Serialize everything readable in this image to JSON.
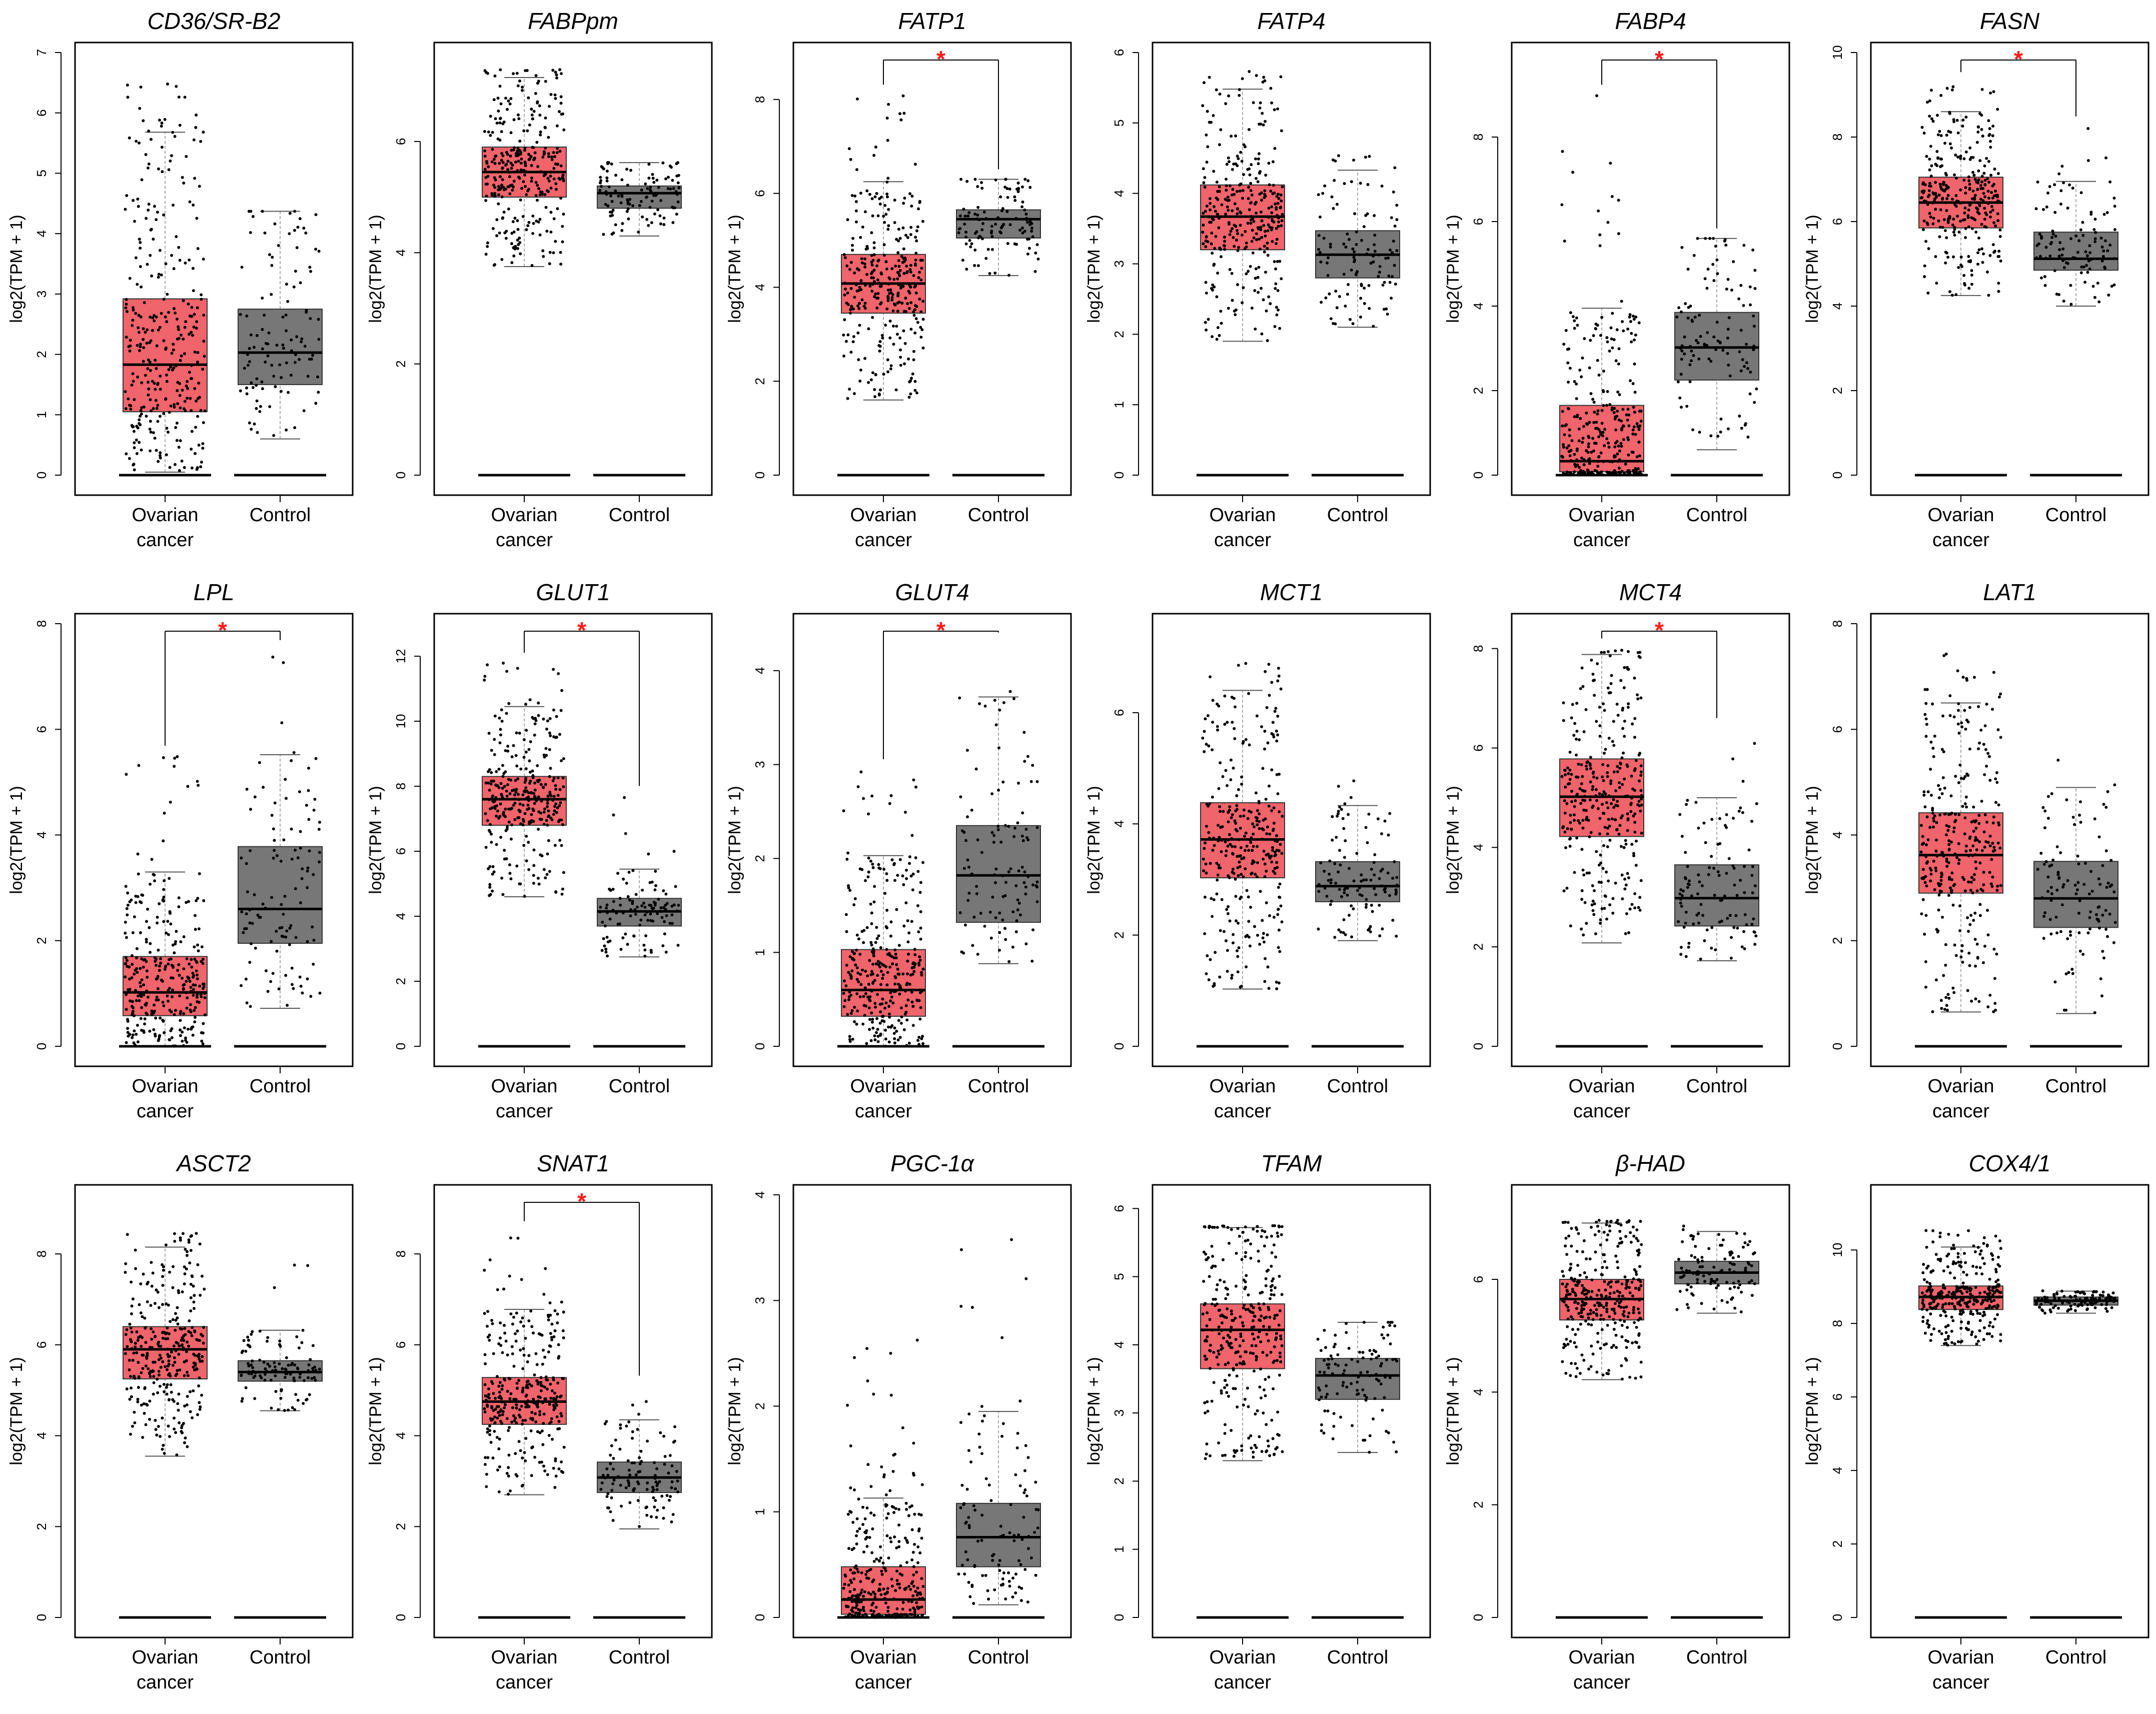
{
  "figure": {
    "colors": {
      "tumor": "#f0646b",
      "normal": "#777777",
      "star": "#ff1a1a",
      "whisker": "#aaaaaa",
      "dot": "#000000"
    }
  },
  "chart_data": [
    {
      "type": "box",
      "title": "CD36/SR-B2",
      "ylabel": "log2(TPM + 1)",
      "ylim": [
        0,
        7
      ],
      "yticks": [
        0,
        1,
        2,
        3,
        4,
        5,
        6,
        7
      ],
      "categories": [
        "Ovarian cancer",
        "Control"
      ],
      "significant": false,
      "boxes": [
        {
          "name": "Ovarian cancer",
          "q1": 1.05,
          "median": 1.83,
          "q3": 2.92,
          "whisker_low": 0.05,
          "whisker_high": 5.68,
          "max": 6.5
        },
        {
          "name": "Control",
          "q1": 1.5,
          "median": 2.03,
          "q3": 2.75,
          "whisker_low": 0.6,
          "whisker_high": 4.37,
          "max": 4.37
        }
      ]
    },
    {
      "type": "box",
      "title": "FABPpm",
      "ylabel": "log2(TPM + 1)",
      "ylim": [
        0,
        7.6
      ],
      "yticks": [
        0,
        2,
        4,
        6
      ],
      "categories": [
        "Ovarian cancer",
        "Control"
      ],
      "significant": false,
      "boxes": [
        {
          "name": "Ovarian cancer",
          "q1": 5.0,
          "median": 5.45,
          "q3": 5.9,
          "whisker_low": 3.75,
          "whisker_high": 7.15,
          "max": 7.3
        },
        {
          "name": "Control",
          "q1": 4.8,
          "median": 5.07,
          "q3": 5.2,
          "whisker_low": 4.3,
          "whisker_high": 5.62,
          "max": 5.62
        }
      ]
    },
    {
      "type": "box",
      "title": "FATP1",
      "ylabel": "log2(TPM + 1)",
      "ylim": [
        0,
        9
      ],
      "yticks": [
        0,
        2,
        4,
        6,
        8
      ],
      "categories": [
        "Ovarian cancer",
        "Control"
      ],
      "significant": true,
      "boxes": [
        {
          "name": "Ovarian cancer",
          "q1": 3.45,
          "median": 4.08,
          "q3": 4.7,
          "whisker_low": 1.6,
          "whisker_high": 6.25,
          "max": 8.1
        },
        {
          "name": "Control",
          "q1": 5.05,
          "median": 5.45,
          "q3": 5.65,
          "whisker_low": 4.25,
          "whisker_high": 6.3,
          "max": 6.3
        }
      ]
    },
    {
      "type": "box",
      "title": "FATP4",
      "ylabel": "log2(TPM + 1)",
      "ylim": [
        0,
        6
      ],
      "yticks": [
        0,
        1,
        2,
        3,
        4,
        5,
        6
      ],
      "categories": [
        "Ovarian cancer",
        "Control"
      ],
      "significant": false,
      "boxes": [
        {
          "name": "Ovarian cancer",
          "q1": 3.2,
          "median": 3.67,
          "q3": 4.12,
          "whisker_low": 1.9,
          "whisker_high": 5.48,
          "max": 5.75
        },
        {
          "name": "Control",
          "q1": 2.8,
          "median": 3.13,
          "q3": 3.47,
          "whisker_low": 2.1,
          "whisker_high": 4.33,
          "max": 4.65
        }
      ]
    },
    {
      "type": "box",
      "title": "FABP4",
      "ylabel": "log2(TPM + 1)",
      "ylim": [
        0,
        10
      ],
      "yticks": [
        0,
        2,
        4,
        6,
        8
      ],
      "categories": [
        "Ovarian cancer",
        "Control"
      ],
      "significant": true,
      "boxes": [
        {
          "name": "Ovarian cancer",
          "q1": 0.08,
          "median": 0.33,
          "q3": 1.65,
          "whisker_low": 0,
          "whisker_high": 3.95,
          "max": 9.0
        },
        {
          "name": "Control",
          "q1": 2.25,
          "median": 3.02,
          "q3": 3.85,
          "whisker_low": 0.6,
          "whisker_high": 5.6,
          "max": 5.6
        }
      ]
    },
    {
      "type": "box",
      "title": "FASN",
      "ylabel": "log2(TPM + 1)",
      "ylim": [
        0,
        10
      ],
      "yticks": [
        0,
        2,
        4,
        6,
        8,
        10
      ],
      "categories": [
        "Ovarian cancer",
        "Control"
      ],
      "significant": true,
      "boxes": [
        {
          "name": "Ovarian cancer",
          "q1": 5.85,
          "median": 6.45,
          "q3": 7.05,
          "whisker_low": 4.25,
          "whisker_high": 8.6,
          "max": 9.3
        },
        {
          "name": "Control",
          "q1": 4.85,
          "median": 5.12,
          "q3": 5.75,
          "whisker_low": 4.0,
          "whisker_high": 6.95,
          "max": 8.25
        }
      ]
    },
    {
      "type": "box",
      "title": "LPL",
      "ylabel": "log2(TPM + 1)",
      "ylim": [
        0,
        8
      ],
      "yticks": [
        0,
        2,
        4,
        6,
        8
      ],
      "categories": [
        "Ovarian cancer",
        "Control"
      ],
      "significant": true,
      "boxes": [
        {
          "name": "Ovarian cancer",
          "q1": 0.58,
          "median": 1.02,
          "q3": 1.7,
          "whisker_low": 0,
          "whisker_high": 3.3,
          "max": 5.5
        },
        {
          "name": "Control",
          "q1": 1.95,
          "median": 2.6,
          "q3": 3.78,
          "whisker_low": 0.72,
          "whisker_high": 5.52,
          "max": 7.5
        }
      ]
    },
    {
      "type": "box",
      "title": "GLUT1",
      "ylabel": "log2(TPM + 1)",
      "ylim": [
        0,
        13
      ],
      "yticks": [
        0,
        2,
        4,
        6,
        8,
        10,
        12
      ],
      "categories": [
        "Ovarian cancer",
        "Control"
      ],
      "significant": true,
      "boxes": [
        {
          "name": "Ovarian cancer",
          "q1": 6.8,
          "median": 7.6,
          "q3": 8.3,
          "whisker_low": 4.6,
          "whisker_high": 10.45,
          "max": 11.8
        },
        {
          "name": "Control",
          "q1": 3.7,
          "median": 4.15,
          "q3": 4.55,
          "whisker_low": 2.75,
          "whisker_high": 5.45,
          "max": 7.7
        }
      ]
    },
    {
      "type": "box",
      "title": "GLUT4",
      "ylabel": "log2(TPM + 1)",
      "ylim": [
        0,
        4.5
      ],
      "yticks": [
        0,
        1,
        2,
        3,
        4
      ],
      "categories": [
        "Ovarian cancer",
        "Control"
      ],
      "significant": true,
      "boxes": [
        {
          "name": "Ovarian cancer",
          "q1": 0.32,
          "median": 0.6,
          "q3": 1.03,
          "whisker_low": 0,
          "whisker_high": 2.03,
          "max": 2.95
        },
        {
          "name": "Control",
          "q1": 1.32,
          "median": 1.82,
          "q3": 2.35,
          "whisker_low": 0.88,
          "whisker_high": 3.72,
          "max": 4.3
        }
      ]
    },
    {
      "type": "box",
      "title": "MCT1",
      "ylabel": "log2(TPM + 1)",
      "ylim": [
        0,
        7.6
      ],
      "yticks": [
        0,
        2,
        4,
        6
      ],
      "categories": [
        "Ovarian cancer",
        "Control"
      ],
      "significant": false,
      "boxes": [
        {
          "name": "Ovarian cancer",
          "q1": 3.03,
          "median": 3.72,
          "q3": 4.38,
          "whisker_low": 1.03,
          "whisker_high": 6.4,
          "max": 7.0
        },
        {
          "name": "Control",
          "q1": 2.6,
          "median": 2.88,
          "q3": 3.32,
          "whisker_low": 1.9,
          "whisker_high": 4.33,
          "max": 4.8
        }
      ]
    },
    {
      "type": "box",
      "title": "MCT4",
      "ylabel": "log2(TPM + 1)",
      "ylim": [
        0,
        8.5
      ],
      "yticks": [
        0,
        2,
        4,
        6,
        8
      ],
      "categories": [
        "Ovarian cancer",
        "Control"
      ],
      "significant": true,
      "boxes": [
        {
          "name": "Ovarian cancer",
          "q1": 4.22,
          "median": 5.02,
          "q3": 5.78,
          "whisker_low": 2.08,
          "whisker_high": 7.88,
          "max": 8.0
        },
        {
          "name": "Control",
          "q1": 2.42,
          "median": 2.98,
          "q3": 3.65,
          "whisker_low": 1.72,
          "whisker_high": 5.0,
          "max": 6.4
        }
      ]
    },
    {
      "type": "box",
      "title": "LAT1",
      "ylabel": "log2(TPM + 1)",
      "ylim": [
        0,
        8
      ],
      "yticks": [
        0,
        2,
        4,
        6,
        8
      ],
      "categories": [
        "Ovarian cancer",
        "Control"
      ],
      "significant": false,
      "boxes": [
        {
          "name": "Ovarian cancer",
          "q1": 2.9,
          "median": 3.62,
          "q3": 4.42,
          "whisker_low": 0.65,
          "whisker_high": 6.5,
          "max": 7.45
        },
        {
          "name": "Control",
          "q1": 2.25,
          "median": 2.8,
          "q3": 3.5,
          "whisker_low": 0.62,
          "whisker_high": 4.9,
          "max": 6.05
        }
      ]
    },
    {
      "type": "box",
      "title": "ASCT2",
      "ylabel": "log2(TPM + 1)",
      "ylim": [
        0,
        9.3
      ],
      "yticks": [
        0,
        2,
        4,
        6,
        8
      ],
      "categories": [
        "Ovarian cancer",
        "Control"
      ],
      "significant": false,
      "boxes": [
        {
          "name": "Ovarian cancer",
          "q1": 5.25,
          "median": 5.9,
          "q3": 6.4,
          "whisker_low": 3.55,
          "whisker_high": 8.15,
          "max": 8.5
        },
        {
          "name": "Control",
          "q1": 5.2,
          "median": 5.4,
          "q3": 5.65,
          "whisker_low": 4.55,
          "whisker_high": 6.32,
          "max": 8.2
        }
      ]
    },
    {
      "type": "box",
      "title": "SNAT1",
      "ylabel": "log2(TPM + 1)",
      "ylim": [
        0,
        9.3
      ],
      "yticks": [
        0,
        2,
        4,
        6,
        8
      ],
      "categories": [
        "Ovarian cancer",
        "Control"
      ],
      "significant": true,
      "boxes": [
        {
          "name": "Ovarian cancer",
          "q1": 4.25,
          "median": 4.75,
          "q3": 5.28,
          "whisker_low": 2.7,
          "whisker_high": 6.78,
          "max": 8.5
        },
        {
          "name": "Control",
          "q1": 2.75,
          "median": 3.08,
          "q3": 3.42,
          "whisker_low": 1.95,
          "whisker_high": 4.35,
          "max": 5.1
        }
      ]
    },
    {
      "type": "box",
      "title": "PGC-1α",
      "ylabel": "log2(TPM + 1)",
      "ylim": [
        0,
        4
      ],
      "yticks": [
        0,
        1,
        2,
        3,
        4
      ],
      "categories": [
        "Ovarian cancer",
        "Control"
      ],
      "significant": false,
      "boxes": [
        {
          "name": "Ovarian cancer",
          "q1": 0.03,
          "median": 0.17,
          "q3": 0.48,
          "whisker_low": 0,
          "whisker_high": 1.13,
          "max": 2.65
        },
        {
          "name": "Control",
          "q1": 0.48,
          "median": 0.76,
          "q3": 1.08,
          "whisker_low": 0.12,
          "whisker_high": 1.95,
          "max": 3.67
        }
      ]
    },
    {
      "type": "box",
      "title": "TFAM",
      "ylabel": "log2(TPM + 1)",
      "ylim": [
        0,
        6.2
      ],
      "yticks": [
        0,
        1,
        2,
        3,
        4,
        5,
        6
      ],
      "categories": [
        "Ovarian cancer",
        "Control"
      ],
      "significant": false,
      "boxes": [
        {
          "name": "Ovarian cancer",
          "q1": 3.65,
          "median": 4.22,
          "q3": 4.6,
          "whisker_low": 2.3,
          "whisker_high": 5.72,
          "max": 5.75
        },
        {
          "name": "Control",
          "q1": 3.2,
          "median": 3.55,
          "q3": 3.8,
          "whisker_low": 2.42,
          "whisker_high": 4.33,
          "max": 4.33
        }
      ]
    },
    {
      "type": "box",
      "title": "β-HAD",
      "ylabel": "log2(TPM + 1)",
      "ylim": [
        0,
        7.5
      ],
      "yticks": [
        0,
        2,
        4,
        6
      ],
      "categories": [
        "Ovarian cancer",
        "Control"
      ],
      "significant": false,
      "boxes": [
        {
          "name": "Ovarian cancer",
          "q1": 5.28,
          "median": 5.65,
          "q3": 6.0,
          "whisker_low": 4.22,
          "whisker_high": 7.0,
          "max": 7.05
        },
        {
          "name": "Control",
          "q1": 5.92,
          "median": 6.12,
          "q3": 6.32,
          "whisker_low": 5.4,
          "whisker_high": 6.85,
          "max": 6.95
        }
      ]
    },
    {
      "type": "box",
      "title": "COX4/1",
      "ylabel": "log2(TPM + 1)",
      "ylim": [
        0,
        11.5
      ],
      "yticks": [
        0,
        2,
        4,
        6,
        8,
        10
      ],
      "categories": [
        "Ovarian cancer",
        "Control"
      ],
      "significant": false,
      "boxes": [
        {
          "name": "Ovarian cancer",
          "q1": 8.38,
          "median": 8.72,
          "q3": 9.02,
          "whisker_low": 7.4,
          "whisker_high": 10.08,
          "max": 10.6
        },
        {
          "name": "Control",
          "q1": 8.5,
          "median": 8.62,
          "q3": 8.72,
          "whisker_low": 8.28,
          "whisker_high": 8.88,
          "max": 8.9
        }
      ]
    }
  ]
}
